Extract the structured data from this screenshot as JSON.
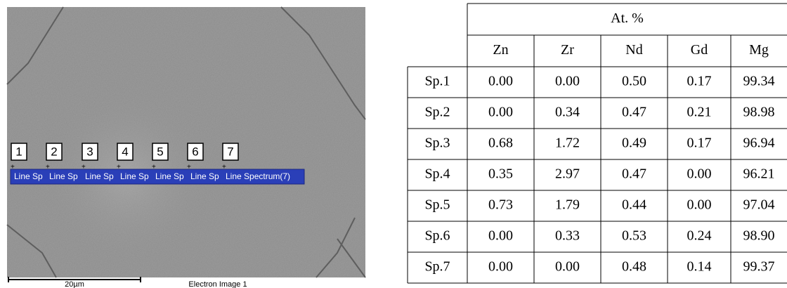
{
  "image": {
    "markers": [
      "1",
      "2",
      "3",
      "4",
      "5",
      "6",
      "7"
    ],
    "spectrum_labels": [
      "Line Sp",
      "Line Sp",
      "Line Sp",
      "Line Sp",
      "Line Sp",
      "Line Sp",
      "Line Spectrum(7)"
    ],
    "scale_label": "20µm",
    "caption": "Electron Image 1"
  },
  "table": {
    "group_header": "At. %",
    "columns": [
      "Zn",
      "Zr",
      "Nd",
      "Gd",
      "Mg"
    ],
    "rows": [
      [
        "Sp.1",
        "0.00",
        "0.00",
        "0.50",
        "0.17",
        "99.34"
      ],
      [
        "Sp.2",
        "0.00",
        "0.34",
        "0.47",
        "0.21",
        "98.98"
      ],
      [
        "Sp.3",
        "0.68",
        "1.72",
        "0.49",
        "0.17",
        "96.94"
      ],
      [
        "Sp.4",
        "0.35",
        "2.97",
        "0.47",
        "0.00",
        "96.21"
      ],
      [
        "Sp.5",
        "0.73",
        "1.79",
        "0.44",
        "0.00",
        "97.04"
      ],
      [
        "Sp.6",
        "0.00",
        "0.33",
        "0.53",
        "0.24",
        "98.90"
      ],
      [
        "Sp.7",
        "0.00",
        "0.00",
        "0.48",
        "0.14",
        "99.37"
      ]
    ]
  }
}
